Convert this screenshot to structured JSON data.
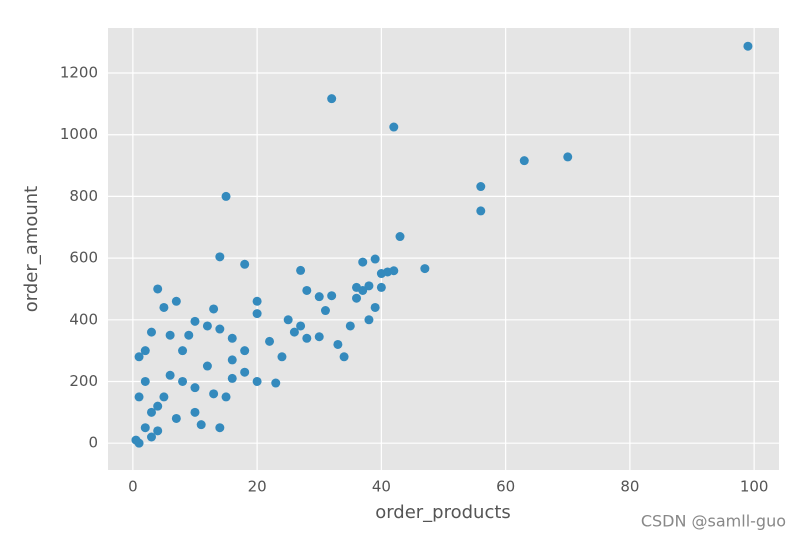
{
  "chart_data": {
    "type": "scatter",
    "x_label": "order_products",
    "y_label": "order_amount",
    "x": [
      99,
      32,
      42,
      63,
      70,
      56,
      56,
      15,
      43,
      14,
      18,
      27,
      47,
      39,
      37,
      40,
      41,
      42,
      38,
      36,
      40,
      37,
      28,
      30,
      32,
      34,
      38,
      39,
      4,
      7,
      5,
      13,
      10,
      12,
      14,
      9,
      16,
      20,
      20,
      25,
      27,
      30,
      23,
      18,
      16,
      14,
      4,
      2,
      3,
      1,
      8,
      5,
      10,
      1,
      2,
      0.5,
      3,
      6,
      12,
      18,
      22,
      26,
      31,
      35,
      24,
      20,
      15,
      10,
      8,
      6,
      2,
      1,
      4,
      7,
      11,
      3,
      13,
      16,
      28,
      33,
      36
    ],
    "values": [
      1287,
      1117,
      1025,
      916,
      928,
      832,
      753,
      800,
      670,
      604,
      580,
      560,
      566,
      597,
      587,
      550,
      555,
      559,
      510,
      505,
      505,
      495,
      495,
      475,
      478,
      280,
      400,
      440,
      500,
      460,
      440,
      435,
      395,
      380,
      370,
      350,
      340,
      460,
      420,
      400,
      380,
      345,
      195,
      230,
      210,
      50,
      40,
      300,
      360,
      280,
      200,
      150,
      100,
      0,
      50,
      10,
      100,
      220,
      250,
      300,
      330,
      360,
      430,
      380,
      280,
      200,
      150,
      180,
      300,
      350,
      200,
      150,
      120,
      80,
      60,
      20,
      160,
      270,
      340,
      320,
      470
    ],
    "color": "#348abd",
    "xlim": [
      -4,
      104
    ],
    "xticks": [
      0,
      20,
      40,
      60,
      80,
      100
    ],
    "ylim": [
      -87,
      1346
    ],
    "yticks": [
      0,
      200,
      400,
      600,
      800,
      1000,
      1200
    ],
    "grid": true,
    "watermark": "CSDN @samll-guo"
  }
}
